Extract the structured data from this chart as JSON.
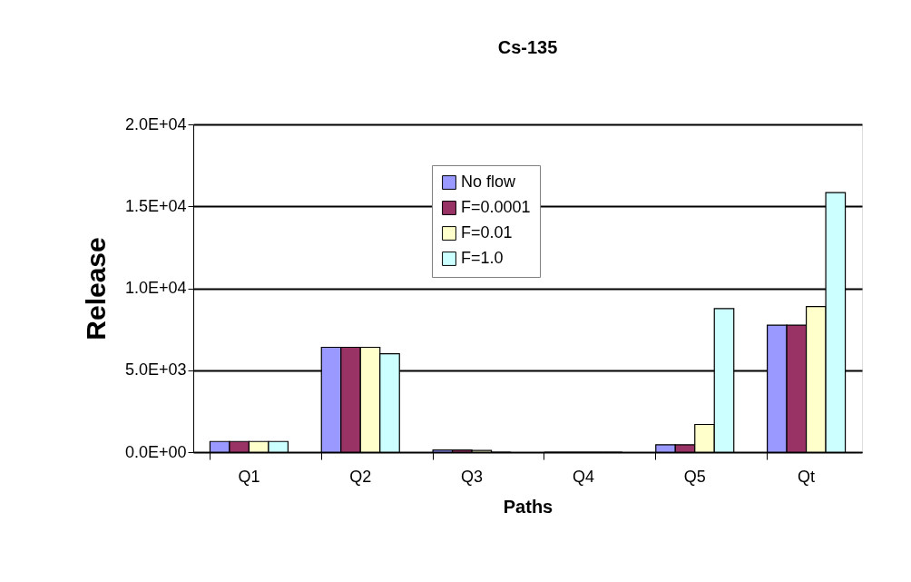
{
  "chart_data": {
    "type": "bar",
    "title": "Cs-135",
    "xlabel": "Paths",
    "ylabel": "Release",
    "categories": [
      "Q1",
      "Q2",
      "Q3",
      "Q4",
      "Q5",
      "Qt"
    ],
    "series": [
      {
        "name": "No flow",
        "color": "#9999ff",
        "values": [
          650,
          6400,
          130,
          0,
          450,
          7750
        ]
      },
      {
        "name": "F=0.0001",
        "color": "#993366",
        "values": [
          650,
          6400,
          130,
          0,
          450,
          7750
        ]
      },
      {
        "name": "F=0.01",
        "color": "#ffffcc",
        "values": [
          650,
          6400,
          100,
          0,
          1690,
          8880
        ]
      },
      {
        "name": "F=1.0",
        "color": "#ccffff",
        "values": [
          650,
          6000,
          0,
          0,
          8760,
          15840
        ]
      }
    ],
    "ylim": [
      0,
      20000
    ],
    "yticks": [
      {
        "value": 0,
        "label": "0.0E+00"
      },
      {
        "value": 5000,
        "label": "5.0E+03"
      },
      {
        "value": 10000,
        "label": "1.0E+04"
      },
      {
        "value": 15000,
        "label": "1.5E+04"
      },
      {
        "value": 20000,
        "label": "2.0E+04"
      }
    ],
    "grid": "y",
    "legend": "top"
  }
}
